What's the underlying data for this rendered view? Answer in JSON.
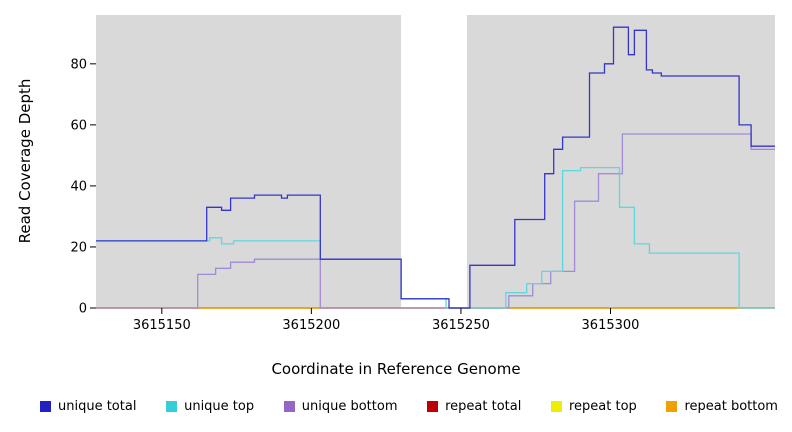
{
  "y_axis": {
    "label": "Read Coverage Depth",
    "ticks": [
      0,
      20,
      40,
      60,
      80
    ]
  },
  "x_axis": {
    "label": "Coordinate in Reference Genome",
    "ticks": [
      3615150,
      3615200,
      3615250,
      3615300
    ]
  },
  "legend": [
    {
      "label": "unique total",
      "color": "#2222c2"
    },
    {
      "label": "unique top",
      "color": "#35cdd8"
    },
    {
      "label": "unique bottom",
      "color": "#9565c8"
    },
    {
      "label": "repeat total",
      "color": "#c00000"
    },
    {
      "label": "repeat top",
      "color": "#eeee00"
    },
    {
      "label": "repeat bottom",
      "color": "#f0a000"
    }
  ],
  "chart_data": {
    "type": "line",
    "step": true,
    "title": "",
    "xlabel": "Coordinate in Reference Genome",
    "ylabel": "Read Coverage Depth",
    "xlim": [
      3615128,
      3615355
    ],
    "ylim": [
      0,
      96
    ],
    "background": "#d9d9d9",
    "gap_region": [
      3615230,
      3615252
    ],
    "series": [
      {
        "name": "repeat top",
        "color": "#eeee00",
        "points": [
          [
            3615128,
            0
          ]
        ]
      },
      {
        "name": "repeat total",
        "color": "#c00000",
        "points": [
          [
            3615128,
            0
          ]
        ]
      },
      {
        "name": "repeat bottom",
        "color": "#f0a000",
        "points": [
          [
            3615128,
            0
          ]
        ]
      },
      {
        "name": "unique bottom",
        "color": "#a18ad6",
        "points": [
          [
            3615128,
            0
          ],
          [
            3615162,
            11
          ],
          [
            3615168,
            13
          ],
          [
            3615173,
            15
          ],
          [
            3615181,
            16
          ],
          [
            3615203,
            0
          ],
          [
            3615266,
            4
          ],
          [
            3615274,
            8
          ],
          [
            3615280,
            12
          ],
          [
            3615288,
            35
          ],
          [
            3615296,
            44
          ],
          [
            3615304,
            57
          ],
          [
            3615347,
            52
          ]
        ]
      },
      {
        "name": "unique top",
        "color": "#5fd7de",
        "points": [
          [
            3615128,
            22
          ],
          [
            3615166,
            23
          ],
          [
            3615170,
            21
          ],
          [
            3615174,
            22
          ],
          [
            3615203,
            16
          ],
          [
            3615230,
            3
          ],
          [
            3615245,
            0
          ],
          [
            3615265,
            5
          ],
          [
            3615272,
            8
          ],
          [
            3615277,
            12
          ],
          [
            3615284,
            45
          ],
          [
            3615290,
            46
          ],
          [
            3615303,
            33
          ],
          [
            3615308,
            21
          ],
          [
            3615313,
            18
          ],
          [
            3615343,
            0
          ]
        ]
      },
      {
        "name": "unique total",
        "color": "#3535c8",
        "points": [
          [
            3615128,
            22
          ],
          [
            3615165,
            33
          ],
          [
            3615170,
            32
          ],
          [
            3615173,
            36
          ],
          [
            3615181,
            37
          ],
          [
            3615190,
            36
          ],
          [
            3615192,
            37
          ],
          [
            3615203,
            16
          ],
          [
            3615230,
            3
          ],
          [
            3615246,
            0
          ],
          [
            3615253,
            14
          ],
          [
            3615268,
            29
          ],
          [
            3615278,
            44
          ],
          [
            3615281,
            52
          ],
          [
            3615284,
            56
          ],
          [
            3615293,
            77
          ],
          [
            3615298,
            80
          ],
          [
            3615301,
            92
          ],
          [
            3615306,
            83
          ],
          [
            3615308,
            91
          ],
          [
            3615312,
            78
          ],
          [
            3615314,
            77
          ],
          [
            3615317,
            76
          ],
          [
            3615343,
            60
          ],
          [
            3615347,
            53
          ]
        ]
      }
    ]
  }
}
